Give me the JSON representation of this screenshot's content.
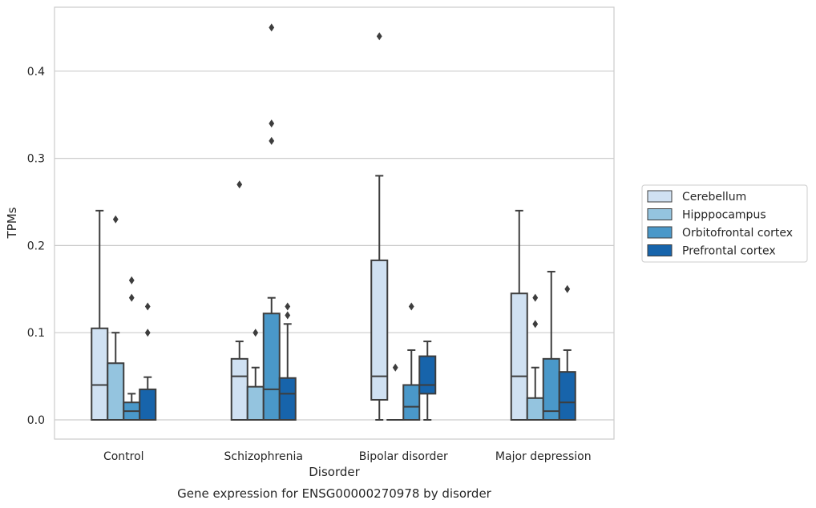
{
  "chart_data": {
    "type": "box",
    "title": "",
    "caption": "Gene expression for ENSG00000270978 by disorder",
    "xlabel": "Disorder",
    "ylabel": "TPMs",
    "ylim": [
      -0.022,
      0.473
    ],
    "yticks": [
      0.0,
      0.1,
      0.2,
      0.3,
      0.4
    ],
    "ytick_labels": [
      "0.0",
      "0.1",
      "0.2",
      "0.3",
      "0.4"
    ],
    "grid": "horizontal",
    "legend_position": "right",
    "categories": [
      "Control",
      "Schizophrenia",
      "Bipolar disorder",
      "Major depression"
    ],
    "series": [
      {
        "name": "Cerebellum",
        "color": "#d0e1f2",
        "boxes": [
          {
            "whislo": 0.0,
            "q1": 0.0,
            "med": 0.04,
            "q3": 0.105,
            "whishi": 0.24,
            "fliers": []
          },
          {
            "whislo": 0.0,
            "q1": 0.0,
            "med": 0.05,
            "q3": 0.07,
            "whishi": 0.09,
            "fliers": [
              0.27
            ]
          },
          {
            "whislo": 0.0,
            "q1": 0.023,
            "med": 0.05,
            "q3": 0.183,
            "whishi": 0.28,
            "fliers": [
              0.44
            ]
          },
          {
            "whislo": 0.0,
            "q1": 0.0,
            "med": 0.05,
            "q3": 0.145,
            "whishi": 0.24,
            "fliers": []
          }
        ]
      },
      {
        "name": "Hipppocampus",
        "color": "#94c4df",
        "boxes": [
          {
            "whislo": 0.0,
            "q1": 0.0,
            "med": 0.0,
            "q3": 0.065,
            "whishi": 0.1,
            "fliers": [
              0.23
            ]
          },
          {
            "whislo": 0.0,
            "q1": 0.0,
            "med": 0.0,
            "q3": 0.038,
            "whishi": 0.06,
            "fliers": [
              0.1
            ]
          },
          {
            "whislo": 0.0,
            "q1": 0.0,
            "med": 0.0,
            "q3": 0.0,
            "whishi": 0.0,
            "fliers": [
              0.06
            ]
          },
          {
            "whislo": 0.0,
            "q1": 0.0,
            "med": 0.0,
            "q3": 0.025,
            "whishi": 0.06,
            "fliers": [
              0.11,
              0.14
            ]
          }
        ]
      },
      {
        "name": "Orbitofrontal cortex",
        "color": "#4a98c9",
        "boxes": [
          {
            "whislo": 0.0,
            "q1": 0.0,
            "med": 0.01,
            "q3": 0.02,
            "whishi": 0.03,
            "fliers": [
              0.14,
              0.16
            ]
          },
          {
            "whislo": 0.0,
            "q1": 0.0,
            "med": 0.035,
            "q3": 0.122,
            "whishi": 0.14,
            "fliers": [
              0.32,
              0.34,
              0.45
            ]
          },
          {
            "whislo": 0.0,
            "q1": 0.0,
            "med": 0.015,
            "q3": 0.04,
            "whishi": 0.08,
            "fliers": [
              0.13
            ]
          },
          {
            "whislo": 0.0,
            "q1": 0.0,
            "med": 0.01,
            "q3": 0.07,
            "whishi": 0.17,
            "fliers": []
          }
        ]
      },
      {
        "name": "Prefrontal cortex",
        "color": "#1764ab",
        "boxes": [
          {
            "whislo": 0.0,
            "q1": 0.0,
            "med": 0.0,
            "q3": 0.035,
            "whishi": 0.049,
            "fliers": [
              0.1,
              0.13
            ]
          },
          {
            "whislo": 0.0,
            "q1": 0.0,
            "med": 0.03,
            "q3": 0.048,
            "whishi": 0.11,
            "fliers": [
              0.12,
              0.13
            ]
          },
          {
            "whislo": 0.0,
            "q1": 0.03,
            "med": 0.04,
            "q3": 0.073,
            "whishi": 0.09,
            "fliers": []
          },
          {
            "whislo": 0.0,
            "q1": 0.0,
            "med": 0.02,
            "q3": 0.055,
            "whishi": 0.08,
            "fliers": [
              0.15
            ]
          }
        ]
      }
    ]
  }
}
